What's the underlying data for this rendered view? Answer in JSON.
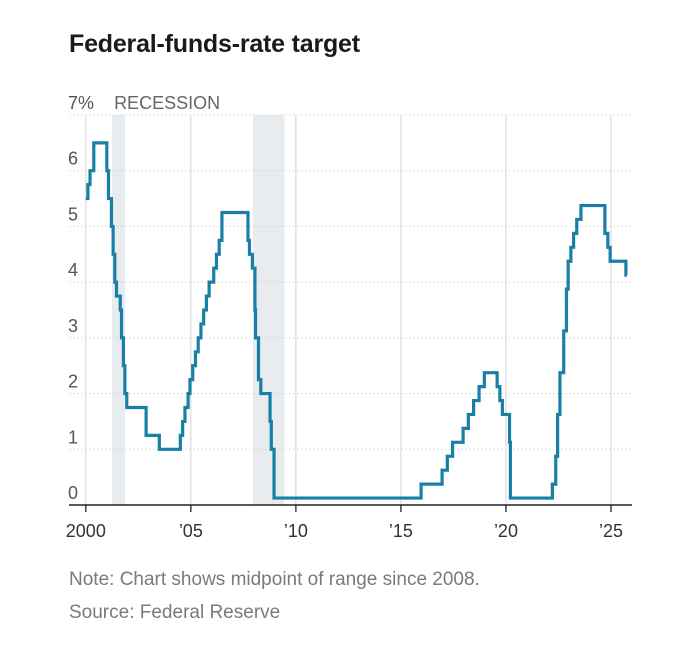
{
  "title": "Federal-funds-rate target",
  "note": "Note: Chart shows midpoint of range since 2008.",
  "source": "Source: Federal Reserve",
  "colors": {
    "line": "#1a7fa6",
    "recession": "#e9ecef",
    "grid": "#d4d4d4",
    "axis": "#222222"
  },
  "chart_data": {
    "type": "line",
    "title": "Federal-funds-rate target",
    "xlabel": "",
    "ylabel": "",
    "xlim": [
      1999.2,
      2026
    ],
    "ylim": [
      0,
      7
    ],
    "y_ticks": [
      0,
      1,
      2,
      3,
      4,
      5,
      6,
      7
    ],
    "y_tick_labels": [
      "0",
      "1",
      "2",
      "3",
      "4",
      "5",
      "6",
      "7%"
    ],
    "x_ticks": [
      2000,
      2005,
      2010,
      2015,
      2020,
      2025
    ],
    "x_tick_labels": [
      "2000",
      "’05",
      "’10",
      "’15",
      "’20",
      "’25"
    ],
    "vertical_gridlines_at": [
      2000,
      2005,
      2010,
      2015,
      2020,
      2025
    ],
    "recession_label": "RECESSION",
    "recessions": [
      {
        "start": 2001.25,
        "end": 2001.87
      },
      {
        "start": 2007.95,
        "end": 2009.45
      }
    ],
    "series": [
      {
        "name": "Federal-funds-rate target",
        "points": [
          [
            2000.0,
            5.5
          ],
          [
            2000.1,
            5.75
          ],
          [
            2000.2,
            6.0
          ],
          [
            2000.38,
            6.5
          ],
          [
            2001.0,
            6.0
          ],
          [
            2001.08,
            5.5
          ],
          [
            2001.22,
            5.0
          ],
          [
            2001.3,
            4.5
          ],
          [
            2001.38,
            4.0
          ],
          [
            2001.46,
            3.75
          ],
          [
            2001.64,
            3.5
          ],
          [
            2001.7,
            3.0
          ],
          [
            2001.79,
            2.5
          ],
          [
            2001.86,
            2.0
          ],
          [
            2001.95,
            1.75
          ],
          [
            2002.87,
            1.25
          ],
          [
            2003.5,
            1.0
          ],
          [
            2004.5,
            1.25
          ],
          [
            2004.61,
            1.5
          ],
          [
            2004.72,
            1.75
          ],
          [
            2004.87,
            2.0
          ],
          [
            2004.96,
            2.25
          ],
          [
            2005.09,
            2.5
          ],
          [
            2005.22,
            2.75
          ],
          [
            2005.35,
            3.0
          ],
          [
            2005.48,
            3.25
          ],
          [
            2005.61,
            3.5
          ],
          [
            2005.74,
            3.75
          ],
          [
            2005.87,
            4.0
          ],
          [
            2006.09,
            4.25
          ],
          [
            2006.22,
            4.5
          ],
          [
            2006.35,
            4.75
          ],
          [
            2006.48,
            5.25
          ],
          [
            2007.72,
            4.75
          ],
          [
            2007.79,
            4.5
          ],
          [
            2007.93,
            4.25
          ],
          [
            2008.05,
            3.5
          ],
          [
            2008.08,
            3.0
          ],
          [
            2008.22,
            2.25
          ],
          [
            2008.33,
            2.0
          ],
          [
            2008.77,
            1.5
          ],
          [
            2008.83,
            1.0
          ],
          [
            2008.96,
            0.125
          ],
          [
            2015.96,
            0.375
          ],
          [
            2016.96,
            0.625
          ],
          [
            2017.21,
            0.875
          ],
          [
            2017.46,
            1.125
          ],
          [
            2017.96,
            1.375
          ],
          [
            2018.21,
            1.625
          ],
          [
            2018.46,
            1.875
          ],
          [
            2018.72,
            2.125
          ],
          [
            2018.97,
            2.375
          ],
          [
            2019.58,
            2.125
          ],
          [
            2019.71,
            1.875
          ],
          [
            2019.83,
            1.625
          ],
          [
            2020.17,
            1.125
          ],
          [
            2020.21,
            0.125
          ],
          [
            2022.21,
            0.375
          ],
          [
            2022.37,
            0.875
          ],
          [
            2022.46,
            1.625
          ],
          [
            2022.57,
            2.375
          ],
          [
            2022.75,
            3.125
          ],
          [
            2022.88,
            3.875
          ],
          [
            2022.96,
            4.375
          ],
          [
            2023.09,
            4.625
          ],
          [
            2023.22,
            4.875
          ],
          [
            2023.37,
            5.125
          ],
          [
            2023.57,
            5.375
          ],
          [
            2024.71,
            4.875
          ],
          [
            2024.85,
            4.625
          ],
          [
            2024.96,
            4.375
          ],
          [
            2025.7,
            4.375
          ],
          [
            2025.71,
            4.125
          ],
          [
            2025.75,
            4.125
          ]
        ]
      }
    ]
  }
}
